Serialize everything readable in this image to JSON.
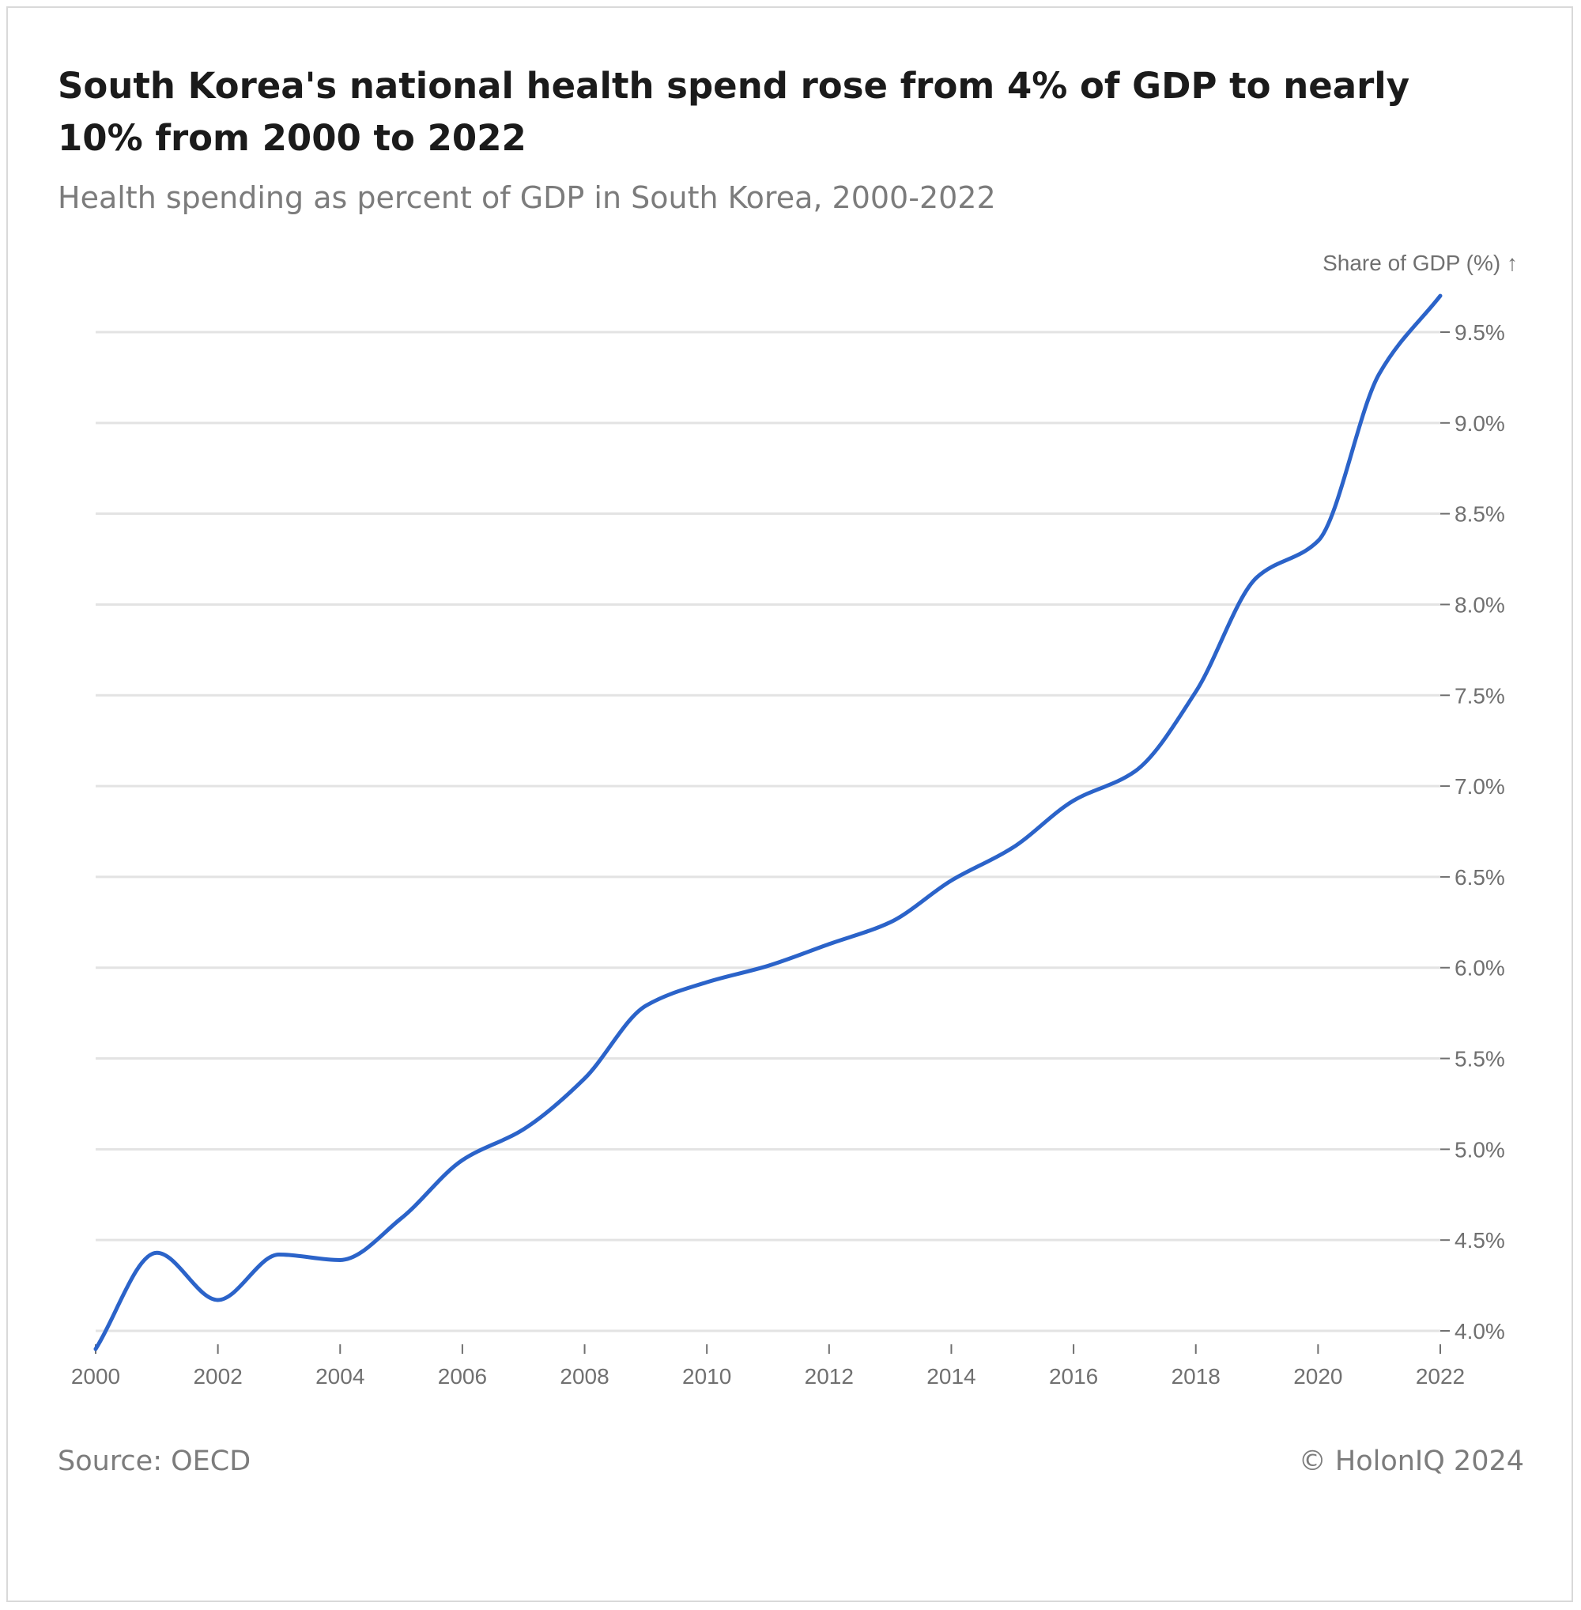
{
  "title": "South Korea's national health spend rose from 4% of GDP to nearly 10% from 2000 to 2022",
  "subtitle": "Health spending as percent of GDP in South Korea, 2000-2022",
  "footer": {
    "source": "Source: OECD",
    "credit": "© HolonIQ 2024"
  },
  "colors": {
    "line": "#2b63c9",
    "grid": "#e3e3e3",
    "tick_text": "#707070"
  },
  "chart_data": {
    "type": "line",
    "title": "South Korea's national health spend rose from 4% of GDP to nearly 10% from 2000 to 2022",
    "subtitle": "Health spending as percent of GDP in South Korea, 2000-2022",
    "xlabel": "",
    "ylabel": "Share of GDP (%) ↑",
    "x": [
      2000,
      2001,
      2002,
      2003,
      2004,
      2005,
      2006,
      2007,
      2008,
      2009,
      2010,
      2011,
      2012,
      2013,
      2014,
      2015,
      2016,
      2017,
      2018,
      2019,
      2020,
      2021,
      2022
    ],
    "series": [
      {
        "name": "Health spending (% of GDP)",
        "values": [
          3.9,
          4.43,
          4.17,
          4.42,
          4.39,
          4.62,
          4.94,
          5.11,
          5.39,
          5.79,
          5.92,
          6.01,
          6.13,
          6.25,
          6.48,
          6.66,
          6.92,
          7.08,
          7.52,
          8.15,
          8.35,
          9.27,
          9.7
        ]
      }
    ],
    "xticks": [
      "2000",
      "2002",
      "2004",
      "2006",
      "2008",
      "2010",
      "2012",
      "2014",
      "2016",
      "2018",
      "2020",
      "2022"
    ],
    "xtick_values": [
      2000,
      2002,
      2004,
      2006,
      2008,
      2010,
      2012,
      2014,
      2016,
      2018,
      2020,
      2022
    ],
    "yticks": [
      "4.0%",
      "4.5%",
      "5.0%",
      "5.5%",
      "6.0%",
      "6.5%",
      "7.0%",
      "7.5%",
      "8.0%",
      "8.5%",
      "9.0%",
      "9.5%"
    ],
    "ytick_values": [
      4.0,
      4.5,
      5.0,
      5.5,
      6.0,
      6.5,
      7.0,
      7.5,
      8.0,
      8.5,
      9.0,
      9.5
    ],
    "xlim": [
      2000,
      2022
    ],
    "ylim": [
      3.88,
      9.72
    ],
    "grid": true,
    "y_axis_position": "right"
  }
}
